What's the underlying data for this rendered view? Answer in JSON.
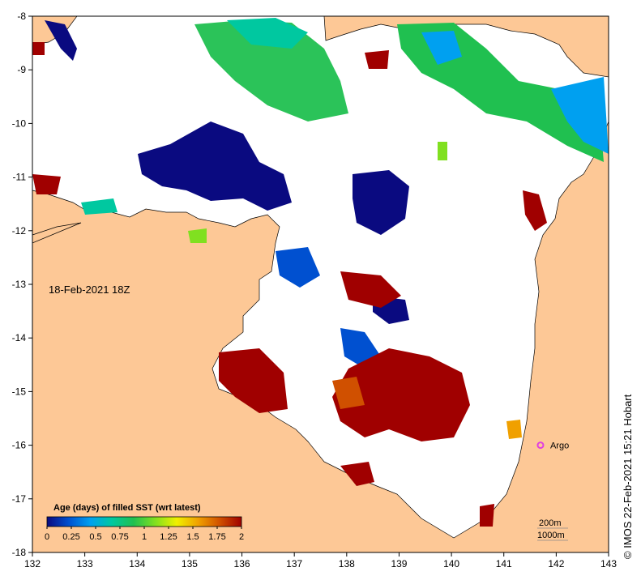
{
  "map": {
    "date_label": "18-Feb-2021 18Z",
    "credit": "© IMOS 22-Feb-2021 15:21 Hobart",
    "x_ticks": [
      "132",
      "133",
      "134",
      "135",
      "136",
      "137",
      "138",
      "139",
      "140",
      "141",
      "142",
      "143"
    ],
    "y_ticks": [
      "-8",
      "-9",
      "-10",
      "-11",
      "-12",
      "-13",
      "-14",
      "-15",
      "-16",
      "-17",
      "-18"
    ],
    "lon_range": [
      132,
      143
    ],
    "lat_range": [
      -18,
      -8
    ],
    "marker": {
      "label": "Argo",
      "lon": 141.7,
      "lat": -16.0,
      "color": "#e040e0"
    },
    "depth_contours": [
      "200m",
      "1000m"
    ],
    "colors": {
      "land": "#fdc896",
      "sea": "#ffffff",
      "coast": "#000000"
    }
  },
  "legend": {
    "title": "Age (days) of filled SST (wrt latest)",
    "ticks": [
      "0",
      "0.25",
      "0.5",
      "0.75",
      "1",
      "1.25",
      "1.5",
      "1.75",
      "2"
    ],
    "range": [
      0,
      2
    ],
    "colors": [
      "#0a0a80",
      "#0050d0",
      "#00a0f0",
      "#00c8a0",
      "#20c050",
      "#80e020",
      "#f0f000",
      "#f0a000",
      "#d05000",
      "#a00000"
    ]
  }
}
